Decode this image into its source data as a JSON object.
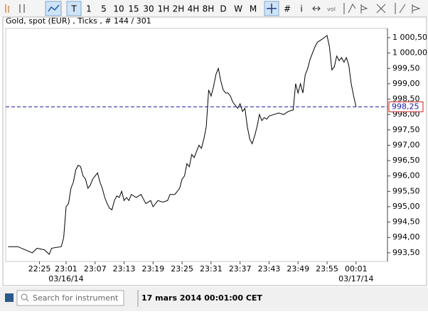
{
  "toolbar": {
    "buttons": [
      "T",
      "1",
      "5",
      "10",
      "15",
      "30",
      "1H",
      "2H",
      "4H",
      "8H",
      "D",
      "W",
      "M",
      "#",
      "i",
      "vol"
    ]
  },
  "chart_data": {
    "type": "line",
    "title": "Gold, spot (EUR) , Ticks , # 144 / 301",
    "x": [
      1,
      5,
      8,
      11,
      13,
      16,
      18,
      19,
      23,
      24,
      25,
      26,
      27,
      28,
      29,
      30,
      31,
      32,
      33,
      34,
      35,
      36,
      37,
      38,
      39,
      40,
      41,
      42,
      43,
      44,
      45,
      46,
      47,
      48,
      49,
      50,
      51,
      52,
      54,
      56,
      58,
      60,
      61,
      63,
      65,
      67,
      68,
      70,
      72,
      73,
      74,
      75,
      76,
      77,
      78,
      79,
      80,
      81,
      82,
      83,
      84,
      85,
      86,
      87,
      88,
      89,
      90,
      91,
      92,
      93,
      94,
      95,
      96,
      97,
      98,
      99,
      100,
      101,
      102,
      103,
      104,
      105,
      106,
      107,
      108,
      109,
      111,
      113,
      115,
      117,
      119,
      120,
      121,
      122,
      123,
      124,
      125,
      126,
      127,
      128,
      129,
      131,
      133,
      134,
      135,
      136,
      137,
      138,
      139,
      140,
      141,
      142,
      143,
      144,
      145
    ],
    "series": [
      {
        "name": "Gold, spot (EUR)",
        "color": "#000000",
        "values": [
          993.7,
          993.7,
          993.6,
          993.5,
          993.65,
          993.6,
          993.45,
          993.65,
          993.7,
          994.0,
          995.0,
          995.1,
          995.6,
          995.8,
          996.2,
          996.35,
          996.3,
          996.0,
          995.9,
          995.6,
          995.7,
          995.9,
          996.0,
          996.1,
          995.8,
          995.6,
          995.3,
          995.1,
          994.95,
          994.9,
          995.2,
          995.35,
          995.3,
          995.5,
          995.2,
          995.3,
          995.2,
          995.4,
          995.3,
          995.4,
          995.1,
          995.2,
          995.0,
          995.2,
          995.15,
          995.2,
          995.4,
          995.4,
          995.6,
          995.9,
          996.0,
          996.4,
          996.3,
          996.7,
          996.6,
          996.8,
          997.0,
          996.9,
          997.2,
          997.6,
          998.8,
          998.6,
          998.9,
          999.3,
          999.5,
          999.1,
          998.8,
          998.7,
          998.7,
          998.6,
          998.4,
          998.3,
          998.2,
          998.35,
          998.1,
          998.2,
          997.6,
          997.2,
          997.05,
          997.3,
          997.6,
          998.0,
          997.8,
          997.9,
          997.85,
          997.95,
          998.0,
          998.05,
          998.0,
          998.1,
          998.15,
          999.0,
          998.7,
          999.0,
          998.7,
          999.3,
          999.5,
          999.8,
          1000.0,
          1000.2,
          1000.35,
          1000.45,
          1000.57,
          1000.2,
          999.45,
          999.55,
          999.9,
          999.75,
          999.85,
          999.7,
          999.85,
          999.6,
          999.0,
          998.6,
          998.25
        ]
      }
    ],
    "xlim": [
      0,
      158
    ],
    "xticks": [
      {
        "value": 14,
        "label": "22:25"
      },
      {
        "value": 25,
        "label": "23:01"
      },
      {
        "value": 37,
        "label": "23:07"
      },
      {
        "value": 49,
        "label": "23:13"
      },
      {
        "value": 61,
        "label": "23:19"
      },
      {
        "value": 73,
        "label": "23:25"
      },
      {
        "value": 85,
        "label": "23:31"
      },
      {
        "value": 97,
        "label": "23:37"
      },
      {
        "value": 109,
        "label": "23:43"
      },
      {
        "value": 121,
        "label": "23:49"
      },
      {
        "value": 133,
        "label": "23:55"
      },
      {
        "value": 145,
        "label": "00:01"
      }
    ],
    "x_date_labels": [
      {
        "value": 25,
        "label": "03/16/14"
      },
      {
        "value": 145,
        "label": "03/17/14"
      }
    ],
    "ylim": [
      993.22,
      1000.8
    ],
    "yticks": [
      {
        "value": 993.5,
        "label": "993,50"
      },
      {
        "value": 994,
        "label": "994,00"
      },
      {
        "value": 994.5,
        "label": "994,50"
      },
      {
        "value": 995,
        "label": "995,00"
      },
      {
        "value": 995.5,
        "label": "995,50"
      },
      {
        "value": 996,
        "label": "996,00"
      },
      {
        "value": 996.5,
        "label": "996,50"
      },
      {
        "value": 997,
        "label": "997,00"
      },
      {
        "value": 997.5,
        "label": "997,50"
      },
      {
        "value": 998,
        "label": "998,00"
      },
      {
        "value": 998.5,
        "label": "998,50"
      },
      {
        "value": 999,
        "label": "999,00"
      },
      {
        "value": 999.5,
        "label": "999,50"
      },
      {
        "value": 1000,
        "label": "1 000,00"
      },
      {
        "value": 1000.5,
        "label": "1 000,50"
      }
    ],
    "current_price": {
      "value": 998.25,
      "label": "998,25",
      "color": "#1a1aa6"
    },
    "grid": false
  },
  "footer": {
    "search_placeholder": "Search for instrument",
    "timestamp": "17 mars 2014 00:01:00 CET"
  }
}
